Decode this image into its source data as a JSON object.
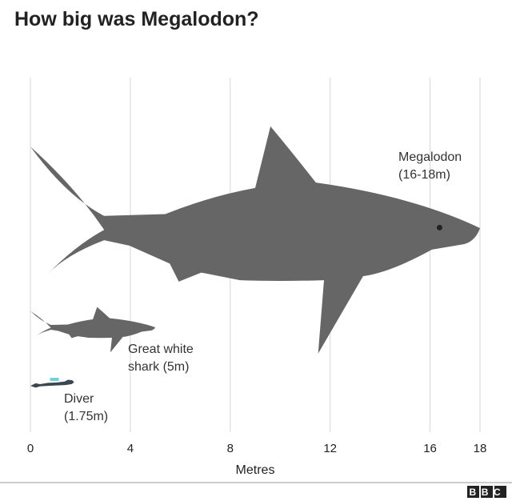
{
  "chart_data": {
    "type": "pictorial",
    "title": "How big was Megalodon?",
    "categories": [
      "Megalodon",
      "Great white shark",
      "Diver"
    ],
    "values": [
      18,
      5,
      1.75
    ],
    "value_labels": [
      "(16-18m)",
      "(5m)",
      "(1.75m)"
    ],
    "color": "#666666",
    "xlim": [
      0,
      18
    ],
    "xticks": [
      0,
      4,
      8,
      12,
      16,
      18
    ],
    "xlabel": "Metres",
    "grid": true,
    "source": "BBC"
  }
}
